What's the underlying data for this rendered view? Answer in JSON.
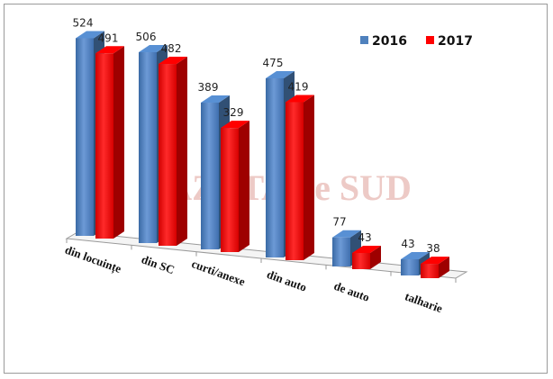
{
  "chart_data": {
    "type": "bar",
    "categories": [
      "din locuințe",
      "din SC",
      "curti/anexe",
      "din auto",
      "de auto",
      "talharie"
    ],
    "series": [
      {
        "name": "2016",
        "color": "#4f81bd",
        "values": [
          524,
          506,
          389,
          475,
          77,
          43
        ]
      },
      {
        "name": "2017",
        "color": "#ff0000",
        "values": [
          491,
          482,
          329,
          419,
          43,
          38
        ]
      }
    ],
    "title": "",
    "xlabel": "",
    "ylabel": "",
    "ylim": [
      0,
      540
    ],
    "grid": false,
    "legend_position": "top-right",
    "style": "3d-clustered-column"
  },
  "watermark": "GAZETA de SUD"
}
